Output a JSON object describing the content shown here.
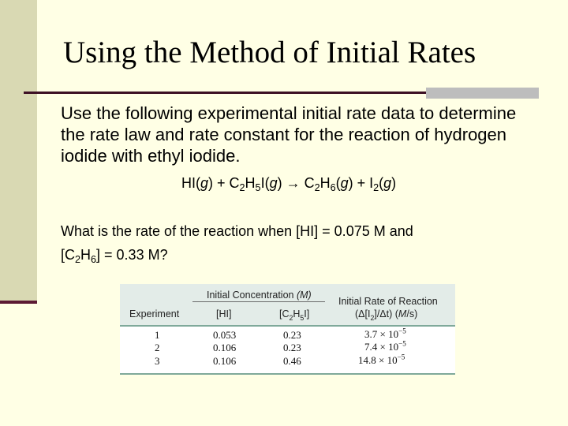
{
  "slide": {
    "title": "Using the Method of Initial Rates",
    "body": "Use the following experimental initial rate data to determine the rate law and rate constant for the reaction of hydrogen iodide with ethyl iodide.",
    "equation": "HI(g) + C2H5I(g) → C2H6(g) + I2(g)",
    "question": "What is the rate of the reaction when [HI] = 0.075 M and [C2H6] = 0.33 M?"
  },
  "table": {
    "group_header": "Initial Concentration",
    "group_unit": "(M)",
    "rate_header": "Initial Rate of Reaction",
    "rate_unit": "(Δ[I2]/Δt) (M/s)",
    "col_experiment": "Experiment",
    "col_hi": "[HI]",
    "col_c2h5i": "[C2H5I]",
    "rows": [
      {
        "experiment": "1",
        "hi": "0.053",
        "c2h5i": "0.23",
        "rate_mantissa": "3.7",
        "rate_exp": "10−5"
      },
      {
        "experiment": "2",
        "hi": "0.106",
        "c2h5i": "0.23",
        "rate_mantissa": "7.4",
        "rate_exp": "10−5"
      },
      {
        "experiment": "3",
        "hi": "0.106",
        "c2h5i": "0.46",
        "rate_mantissa": "14.8",
        "rate_exp": "10−5"
      }
    ]
  }
}
